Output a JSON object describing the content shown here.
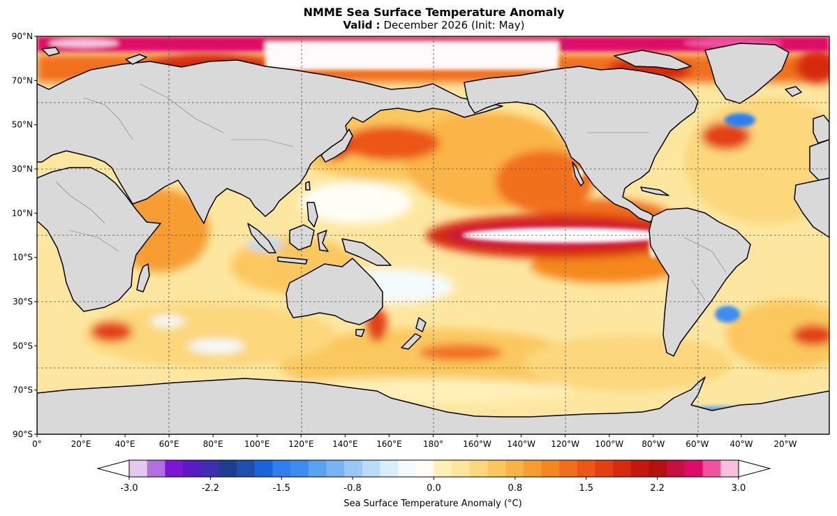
{
  "title": "NMME Sea Surface Temperature Anomaly",
  "subtitle": {
    "valid_label": "Valid :",
    "valid_text": "December 2026 (Init: May)"
  },
  "map": {
    "projection": "plate-carree",
    "lon_range": [
      0,
      360
    ],
    "lat_range": [
      -90,
      90
    ],
    "gridlines": "dashed",
    "lat_labels": [
      "90°N",
      "70°N",
      "50°N",
      "30°N",
      "10°N",
      "10°S",
      "30°S",
      "50°S",
      "70°S",
      "90°S"
    ],
    "lon_labels": [
      "0°",
      "20°E",
      "40°E",
      "60°E",
      "80°E",
      "100°E",
      "120°E",
      "140°E",
      "160°E",
      "180°",
      "160°W",
      "140°W",
      "120°W",
      "100°W",
      "80°W",
      "60°W",
      "40°W",
      "20°W"
    ],
    "land_color": "#d9d9d9",
    "features": [
      {
        "name": "Eastern equatorial Pacific warm anomaly",
        "value": "> 3.0"
      },
      {
        "name": "Arctic marginal warm anomaly",
        "value": "> 2.2"
      },
      {
        "name": "North Atlantic cold patch",
        "value": "-1.5"
      },
      {
        "name": "South Atlantic cold patch",
        "value": "-1.5"
      }
    ]
  },
  "colorbar": {
    "label": "Sea Surface Temperature Anomaly (°C)",
    "tick_labels": [
      "-3.0",
      "-2.2",
      "-1.5",
      "-0.8",
      "0.0",
      "0.8",
      "1.5",
      "2.2",
      "3.0"
    ],
    "range": [
      -3.0,
      3.0
    ],
    "extend": "both",
    "colors": [
      "#e5c7ef",
      "#b070e0",
      "#7d16d6",
      "#5b1bc3",
      "#3d2fae",
      "#1e3f8f",
      "#1f4fa8",
      "#1b63d8",
      "#2f7fee",
      "#3c8df0",
      "#5aa2f2",
      "#79b3f4",
      "#9ac8f6",
      "#b9dcf8",
      "#d8eefa",
      "#f4fbfd",
      "#fffdf6",
      "#fff0b8",
      "#fde69a",
      "#fcd77c",
      "#fbc85e",
      "#fab446",
      "#f89d30",
      "#f5871f",
      "#f16f1a",
      "#ec5716",
      "#e33f12",
      "#d72a10",
      "#c7170e",
      "#b3120f",
      "#c90e44",
      "#df0b6a",
      "#f052a2",
      "#f7c0dd"
    ]
  }
}
